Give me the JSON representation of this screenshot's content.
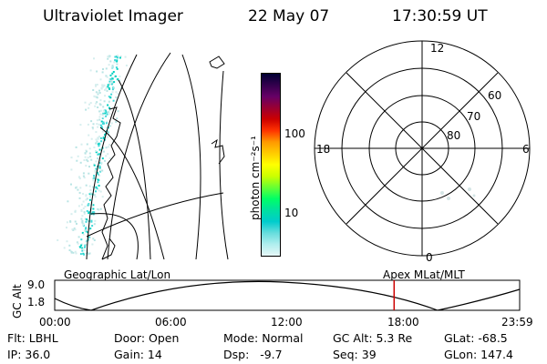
{
  "header": {
    "instrument": "Ultraviolet Imager",
    "date": "22 May 07",
    "time": "17:30:59 UT"
  },
  "colorbar": {
    "unit_label": "photon cm⁻²s⁻¹",
    "ticks": [
      "100",
      "10"
    ],
    "colors": [
      "#000033",
      "#33004d",
      "#660066",
      "#990033",
      "#cc0000",
      "#ff3300",
      "#ff9900",
      "#ffcc00",
      "#ffff00",
      "#ccff00",
      "#66ff33",
      "#00ff66",
      "#00e0a0",
      "#00cccc",
      "#66dddd",
      "#b0eeee",
      "#e6f7f7"
    ]
  },
  "polar_plot": {
    "mlt_labels": {
      "top": "12",
      "left": "18",
      "right": "6",
      "bottom": "0"
    },
    "lat_labels": [
      "60",
      "70",
      "80"
    ]
  },
  "timeline": {
    "left_label": "Geographic Lat/Lon",
    "right_label": "Apex MLat/MLT",
    "y_axis_label": "GC Alt",
    "y_ticks": [
      "9.0",
      "1.8"
    ],
    "x_ticks": [
      "00:00",
      "06:00",
      "12:00",
      "18:00",
      "23:59"
    ],
    "current_time_fraction": 0.73,
    "marker_color": "#cc0000"
  },
  "info": {
    "row1": [
      "Flt: LBHL",
      "Door: Open",
      "Mode: Normal",
      "GC Alt: 5.3 Re",
      "GLat: -68.5"
    ],
    "row2": [
      "IP: 36.0",
      "Gain: 14",
      "Dsp:   -9.7",
      "Seq: 39",
      "GLon: 147.4"
    ]
  }
}
